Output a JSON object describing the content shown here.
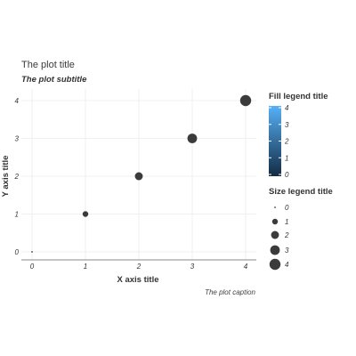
{
  "chart_data": {
    "type": "scatter",
    "title": "The plot title",
    "subtitle": "The plot subtitle",
    "caption": "The plot caption",
    "xlabel": "X axis title",
    "ylabel": "Y axis title",
    "xlim": [
      0,
      4
    ],
    "ylim": [
      0,
      4
    ],
    "xticks": [
      "0",
      "1",
      "2",
      "3",
      "4"
    ],
    "yticks": [
      "0",
      "1",
      "2",
      "3",
      "4"
    ],
    "grid": true,
    "x": [
      0,
      1,
      2,
      3,
      4
    ],
    "y": [
      0,
      1,
      2,
      3,
      4
    ],
    "size": [
      0,
      1,
      2,
      3,
      4
    ],
    "point_color": "#3b3b3b",
    "fill_legend": {
      "title": "Fill legend title",
      "ticks": [
        "0",
        "1",
        "2",
        "3",
        "4"
      ],
      "colors": [
        "#132b43",
        "#56b1f7"
      ]
    },
    "size_legend": {
      "title": "Size legend title",
      "labels": [
        "0",
        "1",
        "2",
        "3",
        "4"
      ]
    }
  }
}
